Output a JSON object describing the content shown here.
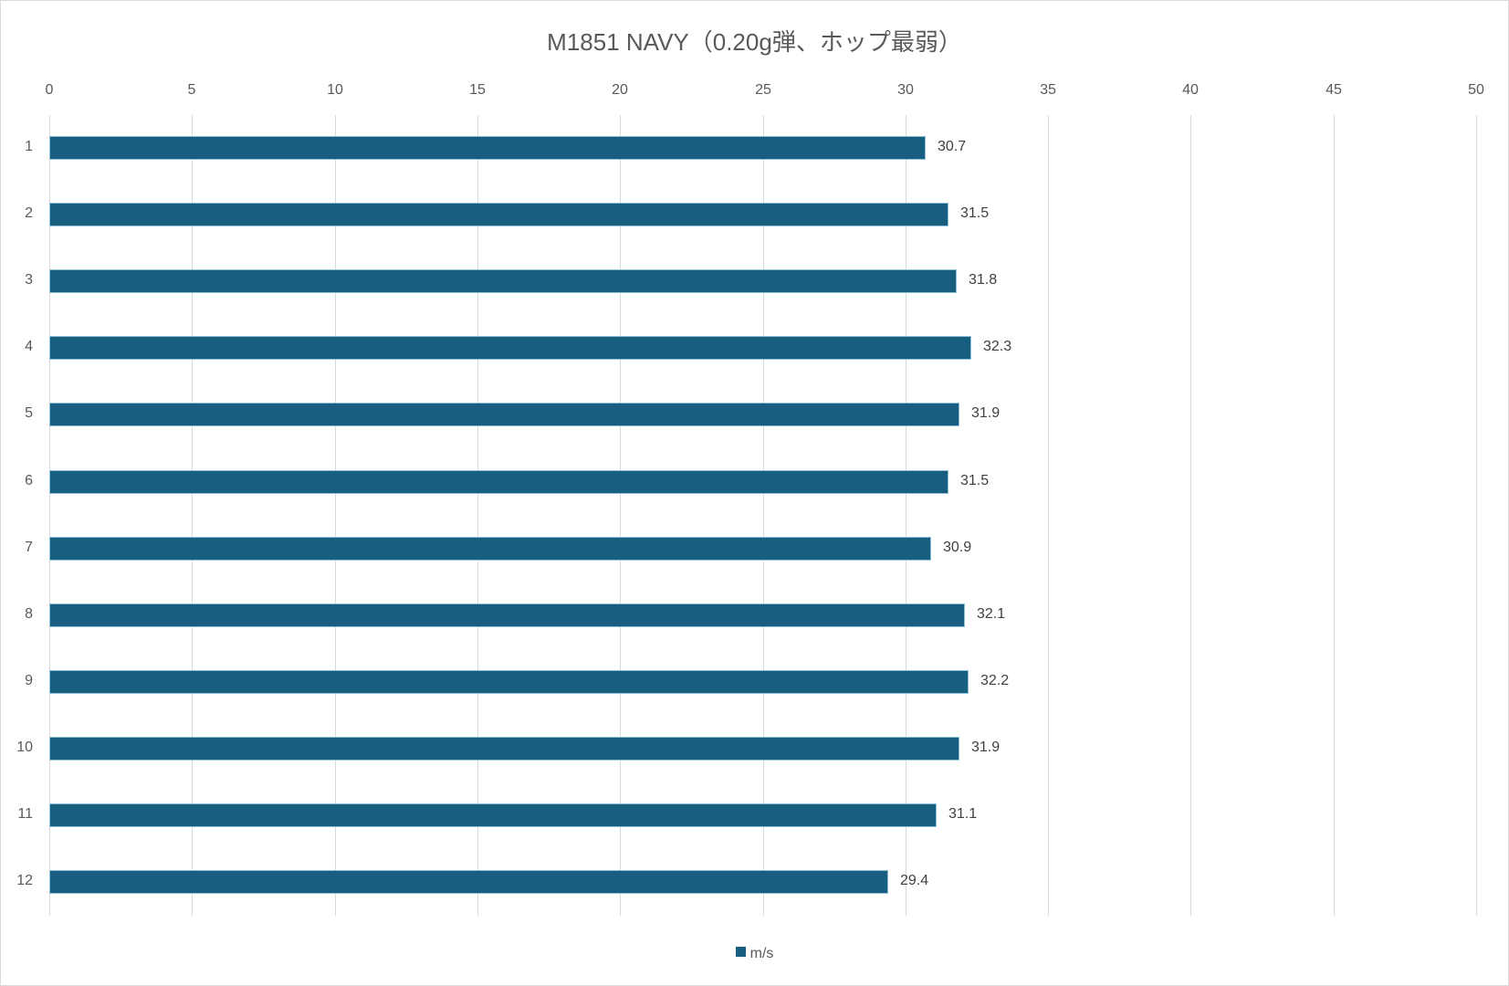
{
  "chart_data": {
    "type": "bar",
    "orientation": "horizontal",
    "title": "M1851 NAVY（0.20g弾、ホップ最弱）",
    "xlabel": "",
    "ylabel": "",
    "categories": [
      "1",
      "2",
      "3",
      "4",
      "5",
      "6",
      "7",
      "8",
      "9",
      "10",
      "11",
      "12"
    ],
    "series": [
      {
        "name": "m/s",
        "color": "#175E80",
        "values": [
          30.7,
          31.5,
          31.8,
          32.3,
          31.9,
          31.5,
          30.9,
          32.1,
          32.2,
          31.9,
          31.1,
          29.4
        ]
      }
    ],
    "xlim": [
      0,
      50
    ],
    "x_ticks": [
      "0",
      "5",
      "10",
      "15",
      "20",
      "25",
      "30",
      "35",
      "40",
      "45",
      "50"
    ],
    "x_axis_position": "top",
    "grid": true,
    "data_labels": true,
    "legend_position": "bottom"
  },
  "colors": {
    "bar": "#175E80",
    "grid": "#D9D9D9",
    "text": "#595959"
  },
  "legend": {
    "label": "m/s"
  }
}
